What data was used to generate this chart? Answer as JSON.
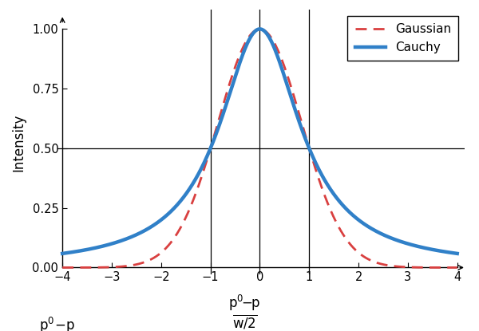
{
  "ylabel": "Intensity",
  "xlim": [
    -4,
    4
  ],
  "ylim": [
    -0.03,
    1.08
  ],
  "x_ticks": [
    -4,
    -3,
    -2,
    -1,
    0,
    1,
    2,
    3,
    4
  ],
  "y_ticks": [
    0.0,
    0.25,
    0.5,
    0.75,
    1.0
  ],
  "vlines": [
    -1,
    0,
    1
  ],
  "hlines": [
    0.5
  ],
  "cauchy_color": "#3080c8",
  "gaussian_color": "#d94040",
  "cauchy_lw": 3.2,
  "gaussian_lw": 2.0,
  "background_color": "#ffffff",
  "gamma": 1.0,
  "sigma": 0.8493
}
